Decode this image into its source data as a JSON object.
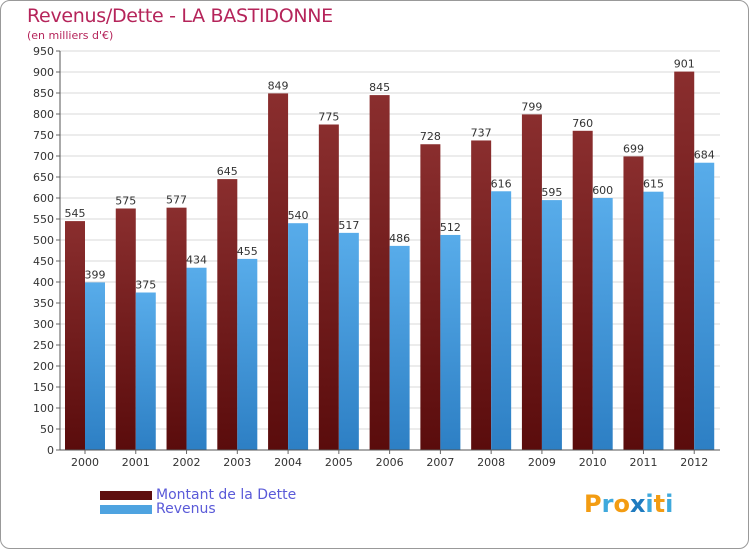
{
  "title": "Revenus/Dette - LA BASTIDONNE",
  "subtitle": "(en milliers d'€)",
  "logo": {
    "text": "Proxiti",
    "colors": [
      "#f39c12",
      "#3fa9dc",
      "#f39c12",
      "#1f7bbf",
      "#3fa9dc",
      "#f39c12",
      "#3fa9dc"
    ]
  },
  "legend": {
    "dette_label": "Montant de la Dette",
    "revenus_label": "Revenus",
    "dette_color": "#6e1a1a",
    "revenus_color": "#4ea3e0"
  },
  "chart_data": {
    "type": "bar",
    "title": "Revenus/Dette - LA BASTIDONNE",
    "ylabel": "(en milliers d'€)",
    "xlabel": "",
    "categories": [
      "2000",
      "2001",
      "2002",
      "2003",
      "2004",
      "2005",
      "2006",
      "2007",
      "2008",
      "2009",
      "2010",
      "2011",
      "2012"
    ],
    "series": [
      {
        "name": "Montant de la Dette",
        "color": "#7a1f1f",
        "values": [
          545,
          575,
          577,
          645,
          849,
          775,
          845,
          728,
          737,
          799,
          760,
          699,
          901
        ]
      },
      {
        "name": "Revenus",
        "color": "#4ea3e0",
        "values": [
          399,
          375,
          434,
          455,
          540,
          517,
          486,
          512,
          616,
          595,
          600,
          615,
          684
        ]
      }
    ],
    "ylim": [
      0,
      950
    ],
    "yticks": [
      0,
      50,
      100,
      150,
      200,
      250,
      300,
      350,
      400,
      450,
      500,
      550,
      600,
      650,
      700,
      750,
      800,
      850,
      900,
      950
    ],
    "grid": true,
    "legend_position": "bottom-left"
  }
}
